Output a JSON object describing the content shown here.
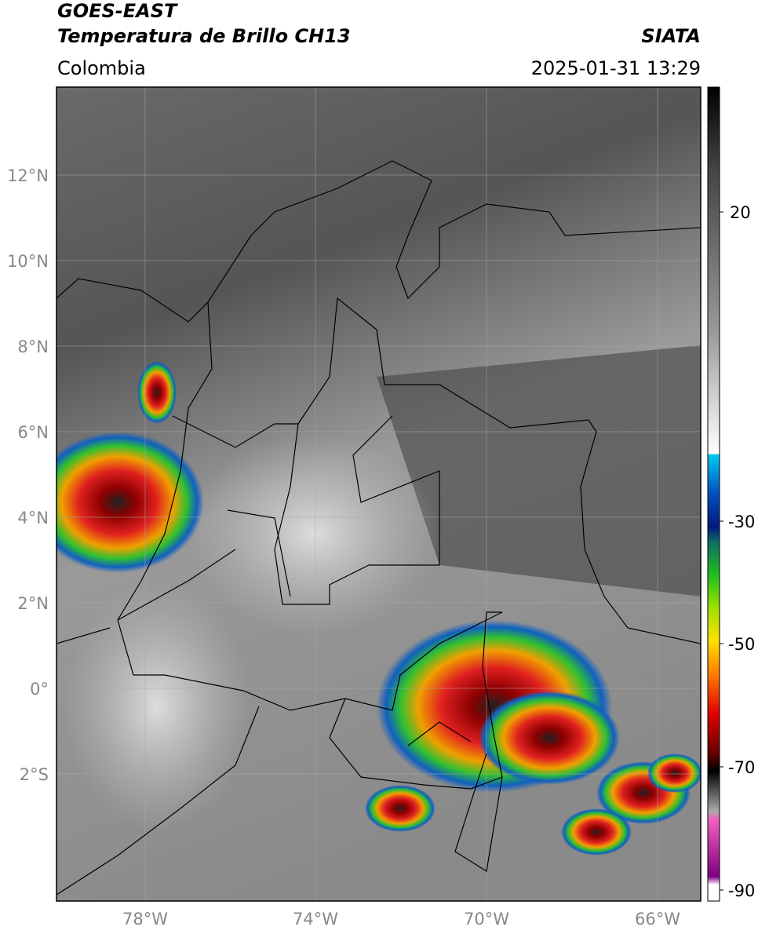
{
  "header": {
    "title": "GOES-EAST",
    "subtitle": "Temperatura de Brillo CH13",
    "source": "SIATA",
    "region": "Colombia",
    "timestamp": "2025-01-31 13:29"
  },
  "map": {
    "lat_ticks": [
      "12°N",
      "10°N",
      "8°N",
      "6°N",
      "4°N",
      "2°N",
      "0°",
      "2°S"
    ],
    "lon_ticks": [
      "78°W",
      "74°W",
      "70°W",
      "66°W"
    ]
  },
  "colorbar": {
    "ticks": [
      20,
      -30,
      -50,
      -70,
      -90
    ]
  }
}
